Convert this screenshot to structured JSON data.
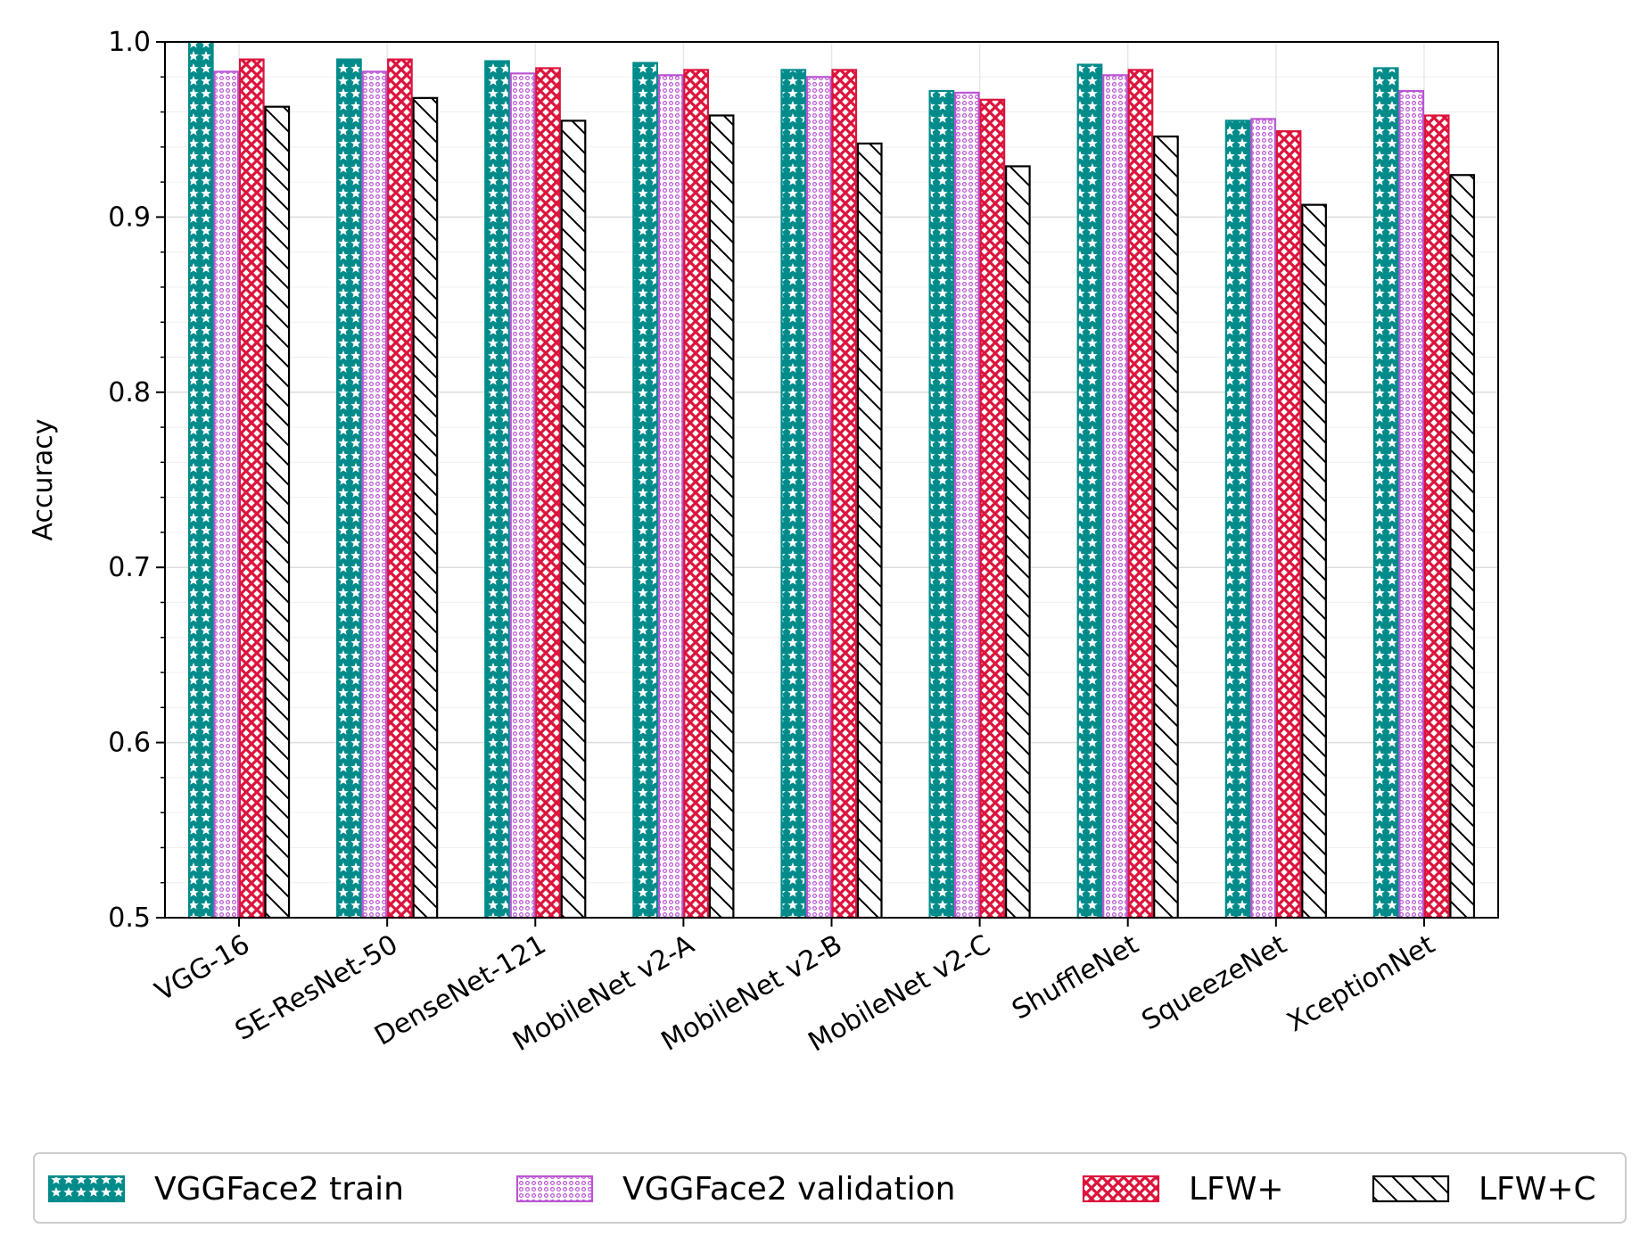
{
  "chart_data": {
    "type": "bar",
    "ylabel": "Accuracy",
    "xlabel": "",
    "title": "",
    "ylim": [
      0.5,
      1.0
    ],
    "yticks": [
      0.5,
      0.6,
      0.7,
      0.8,
      0.9,
      1.0
    ],
    "ytick_labels": [
      "0.5",
      "0.6",
      "0.7",
      "0.8",
      "0.9",
      "1.0"
    ],
    "grid": true,
    "legend_position": "bottom",
    "categories": [
      "VGG-16",
      "SE-ResNet-50",
      "DenseNet-121",
      "MobileNet v2-A",
      "MobileNet v2-B",
      "MobileNet v2-C",
      "ShuffleNet",
      "SqueezeNet",
      "XceptionNet"
    ],
    "series": [
      {
        "name": "VGGFace2 train",
        "color": "#008b8b",
        "pattern": "stars",
        "values": [
          1.0,
          0.99,
          0.989,
          0.988,
          0.984,
          0.972,
          0.987,
          0.955,
          0.985
        ]
      },
      {
        "name": "VGGFace2 validation",
        "color": "#ba55d3",
        "pattern": "dots",
        "values": [
          0.983,
          0.983,
          0.982,
          0.981,
          0.98,
          0.971,
          0.981,
          0.956,
          0.972
        ]
      },
      {
        "name": "LFW+",
        "color": "#dc143c",
        "pattern": "crosshatch",
        "values": [
          0.99,
          0.99,
          0.985,
          0.984,
          0.984,
          0.967,
          0.984,
          0.949,
          0.958
        ]
      },
      {
        "name": "LFW+C",
        "color": "#000000",
        "pattern": "diagonal",
        "values": [
          0.963,
          0.968,
          0.955,
          0.958,
          0.942,
          0.929,
          0.946,
          0.907,
          0.924
        ]
      }
    ]
  }
}
